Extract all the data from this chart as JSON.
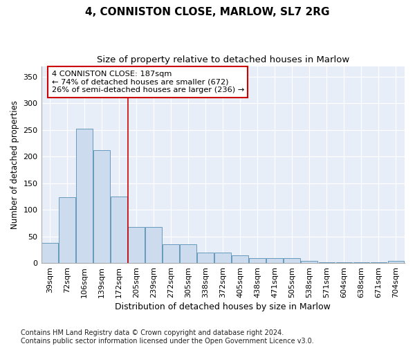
{
  "title1": "4, CONNISTON CLOSE, MARLOW, SL7 2RG",
  "title2": "Size of property relative to detached houses in Marlow",
  "xlabel": "Distribution of detached houses by size in Marlow",
  "ylabel": "Number of detached properties",
  "bar_labels": [
    "39sqm",
    "72sqm",
    "106sqm",
    "139sqm",
    "172sqm",
    "205sqm",
    "239sqm",
    "272sqm",
    "305sqm",
    "338sqm",
    "372sqm",
    "405sqm",
    "438sqm",
    "471sqm",
    "505sqm",
    "538sqm",
    "571sqm",
    "604sqm",
    "638sqm",
    "671sqm",
    "704sqm"
  ],
  "bar_values": [
    38,
    124,
    252,
    212,
    125,
    68,
    68,
    35,
    35,
    20,
    19,
    14,
    9,
    9,
    9,
    4,
    2,
    1,
    1,
    1,
    4
  ],
  "bar_color": "#ccdcee",
  "bar_edge_color": "#6699bb",
  "vline_x": 4.5,
  "vline_color": "#cc0000",
  "annotation_box_text": "4 CONNISTON CLOSE: 187sqm\n← 74% of detached houses are smaller (672)\n26% of semi-detached houses are larger (236) →",
  "annotation_box_facecolor": "white",
  "annotation_box_edgecolor": "#cc0000",
  "ylim": [
    0,
    370
  ],
  "yticks": [
    0,
    50,
    100,
    150,
    200,
    250,
    300,
    350
  ],
  "plot_bg_color": "#e8eef8",
  "footer": "Contains HM Land Registry data © Crown copyright and database right 2024.\nContains public sector information licensed under the Open Government Licence v3.0.",
  "title1_fontsize": 11,
  "title2_fontsize": 9.5,
  "xlabel_fontsize": 9,
  "ylabel_fontsize": 8.5,
  "tick_fontsize": 8,
  "footer_fontsize": 7
}
